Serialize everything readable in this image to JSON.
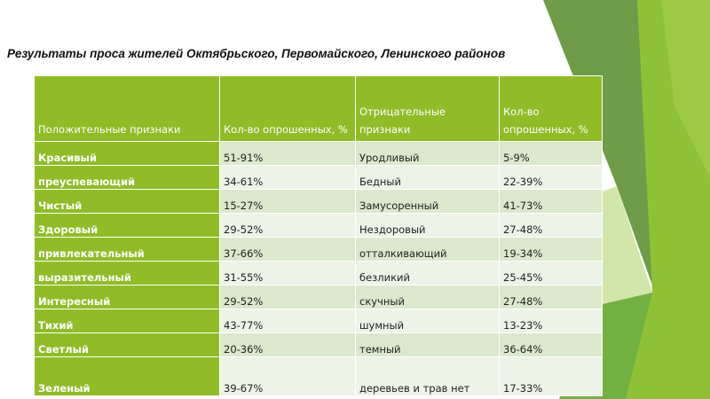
{
  "title": "Результаты проса жителей Октябрьского, Первомайского, Ленинского районов",
  "headers": [
    "Положительные признаки",
    "Кол-во опрошенных, %",
    "Отрицательные признаки",
    "Кол-во опрошенных, %"
  ],
  "rows": [
    [
      "Красивый",
      "51-91%",
      "Уродливый",
      "5-9%"
    ],
    [
      "преуспевающий",
      "34-61%",
      "Бедный",
      "22-39%"
    ],
    [
      "Чистый",
      "15-27%",
      "Замусоренный",
      "41-73%"
    ],
    [
      "Здоровый",
      "29-52%",
      "Нездоровый",
      "27-48%"
    ],
    [
      "привлекательный",
      "37-66%",
      "отталкивающий",
      "19-34%"
    ],
    [
      "выразительный",
      "31-55%",
      "безликий",
      "25-45%"
    ],
    [
      "Интересный",
      "29-52%",
      "скучный",
      "27-48%"
    ],
    [
      "Тихий",
      "43-77%",
      "шумный",
      "13-23%"
    ],
    [
      "Светлый",
      "20-36%",
      "темный",
      "36-64%"
    ],
    [
      "Зеленый",
      "39-67%",
      "деревьев и трав нет",
      "17-33%"
    ]
  ],
  "colors": {
    "header": "#8fbc27",
    "row_odd": "#dbe8cb",
    "row_even": "#edf3e7"
  }
}
